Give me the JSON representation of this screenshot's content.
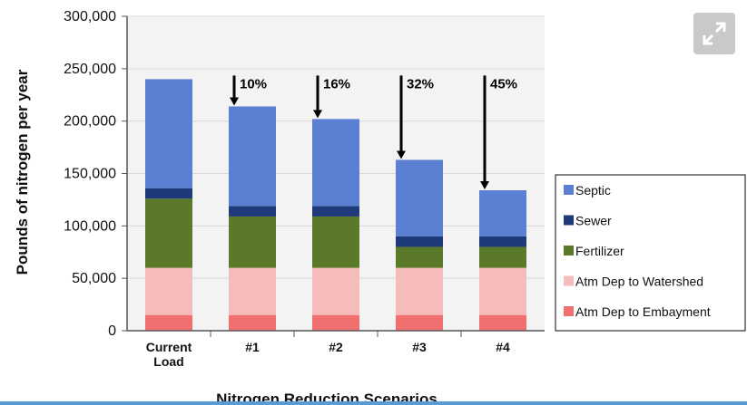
{
  "colors": {
    "Septic": "#5b7fd1",
    "Sewer": "#1f3a7a",
    "Fertilizer": "#5a7a2a",
    "Atm Dep to Watershed": "#f6bcbc",
    "Atm Dep to Embayment": "#f07070"
  },
  "expand_icon": "expand-arrows-icon",
  "chart_data": {
    "type": "bar",
    "stacked": true,
    "categories": [
      [
        "Current",
        "Load"
      ],
      [
        "#1"
      ],
      [
        "#2"
      ],
      [
        "#3"
      ],
      [
        "#4"
      ]
    ],
    "series": [
      {
        "name": "Atm Dep to Embayment",
        "values": [
          15000,
          15000,
          15000,
          15000,
          15000
        ]
      },
      {
        "name": "Atm Dep to Watershed",
        "values": [
          45000,
          45000,
          45000,
          45000,
          45000
        ]
      },
      {
        "name": "Fertilizer",
        "values": [
          66000,
          49000,
          49000,
          20000,
          20000
        ]
      },
      {
        "name": "Sewer",
        "values": [
          10000,
          10000,
          10000,
          10000,
          10000
        ]
      },
      {
        "name": "Septic",
        "values": [
          104000,
          95000,
          83000,
          73000,
          44000
        ]
      }
    ],
    "reduction_labels": [
      "",
      "10%",
      "16%",
      "32%",
      "45%"
    ],
    "ylabel": "Pounds of nitrogen per year",
    "xlabel": "Nitrogen Reduction Scenarios",
    "ylim": [
      0,
      300000
    ],
    "yticks": [
      "0",
      "50,000",
      "100,000",
      "150,000",
      "200,000",
      "250,000",
      "300,000"
    ],
    "legend_order": [
      "Septic",
      "Sewer",
      "Fertilizer",
      "Atm Dep to Watershed",
      "Atm Dep to Embayment"
    ],
    "legend_position": "right",
    "grid": true
  }
}
